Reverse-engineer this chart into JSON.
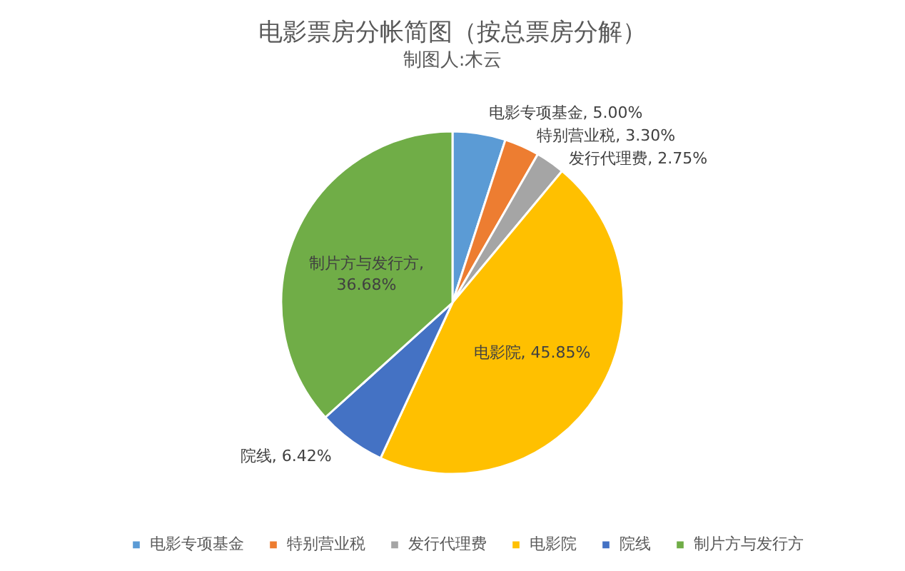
{
  "chart_data": {
    "type": "pie",
    "title": "电影票房分帐简图（按总票房分解）",
    "subtitle": "制图人:木云",
    "categories": [
      "电影专项基金",
      "特别营业税",
      "发行代理费",
      "电影院",
      "院线",
      "制片方与发行方"
    ],
    "values": [
      5.0,
      3.3,
      2.75,
      45.85,
      6.42,
      36.68
    ],
    "colors": [
      "#5b9bd5",
      "#ed7d31",
      "#a5a5a5",
      "#ffc000",
      "#4472c4",
      "#70ad47"
    ],
    "value_labels": [
      "电影专项基金, 5.00%",
      "特别营业税, 3.30%",
      "发行代理费, 2.75%",
      "电影院, 45.85%",
      "院线, 6.42%",
      "制片方与发行方, 36.68%"
    ],
    "legend": "bottom"
  }
}
